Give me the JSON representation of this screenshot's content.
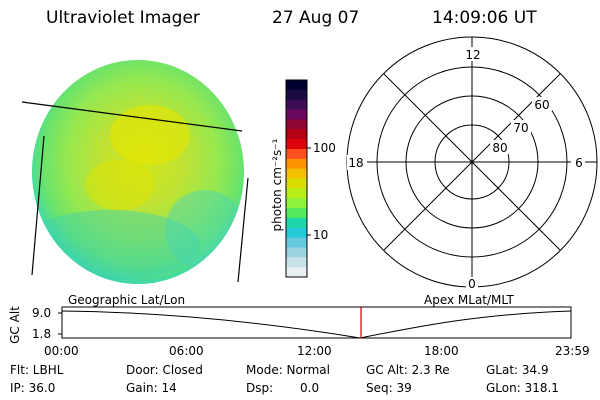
{
  "header": {
    "title": "Ultraviolet Imager",
    "date": "27 Aug 07",
    "time": "14:09:06 UT"
  },
  "colorbar": {
    "label": "photon cm⁻²s⁻¹",
    "ticks": [
      "100",
      "10"
    ],
    "colors": [
      "#000033",
      "#1a0b40",
      "#3b0d55",
      "#6a0a5e",
      "#8e0633",
      "#b30012",
      "#e0000c",
      "#ff4e1f",
      "#ff9200",
      "#f3c000",
      "#d8de00",
      "#b8ef1a",
      "#8ff23a",
      "#54ea60",
      "#1fd6a9",
      "#22c9d6",
      "#66c8dc",
      "#9ad2df",
      "#c6e2e8",
      "#eaf0f2"
    ]
  },
  "polar": {
    "labels": [
      "12",
      "18",
      "6",
      "0",
      "60",
      "70",
      "80"
    ]
  },
  "timeline": {
    "left_title": "Geographic Lat/Lon",
    "right_title": "Apex MLat/MLT",
    "axis_label": "GC Alt",
    "y_ticks": [
      "9.0",
      "1.8"
    ],
    "x_ticks": [
      "00:00",
      "06:00",
      "12:00",
      "18:00",
      "23:59"
    ],
    "marker_color": "#cc0000"
  },
  "info": {
    "row1": [
      "Flt: LBHL",
      "Door: Closed",
      "Mode: Normal",
      "GC Alt: 2.3 Re",
      "GLat: 34.9"
    ],
    "row2": [
      "IP: 36.0",
      "Gain: 14",
      "Dsp:",
      "0.0",
      "Seq: 39",
      "GLon: 318.1"
    ]
  }
}
